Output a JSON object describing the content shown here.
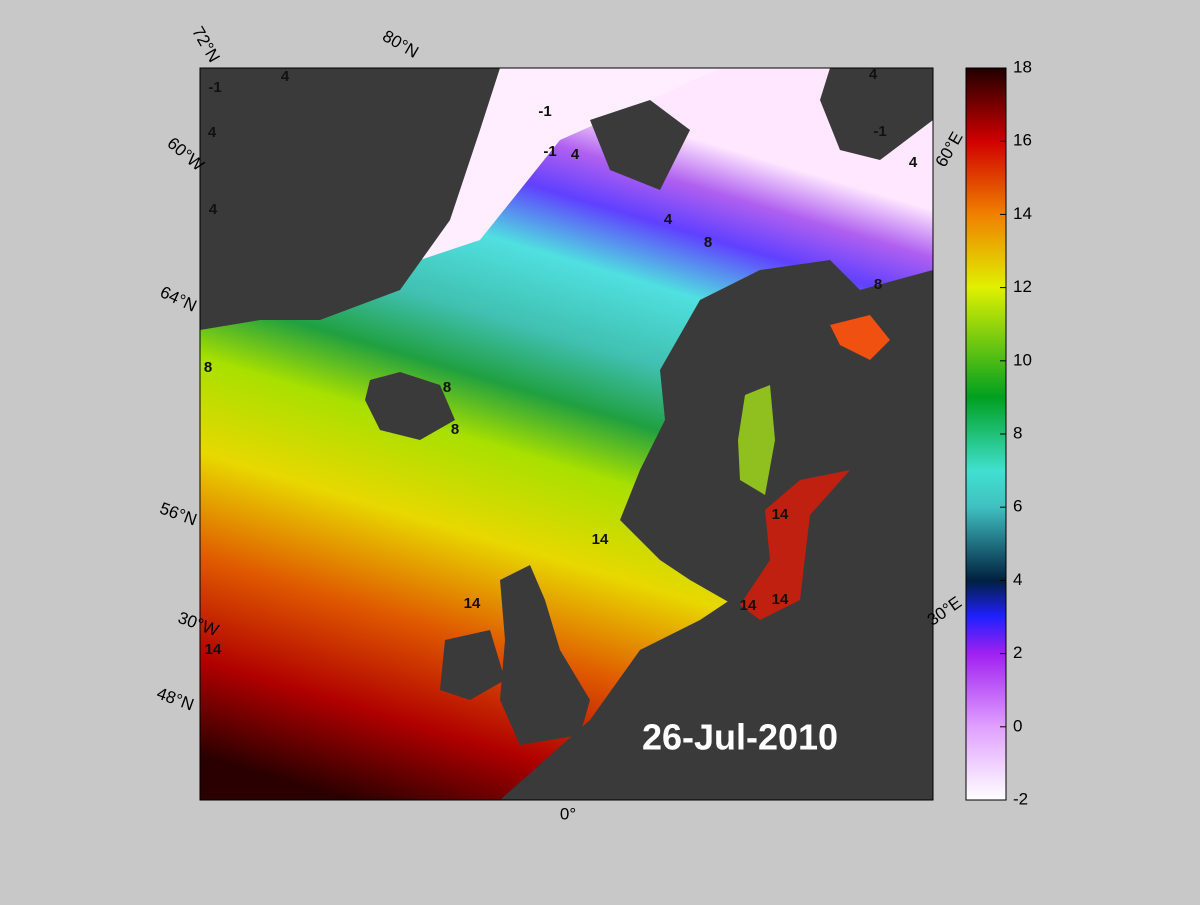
{
  "date": "26-Jul-2010",
  "graticule_labels": [
    "72°N",
    "80°N",
    "60°W",
    "64°N",
    "56°N",
    "30°W",
    "48°N",
    "0°",
    "60°E",
    "30°E"
  ],
  "contour_labels": [
    -1,
    -1,
    -1,
    -1,
    4,
    4,
    4,
    4,
    4,
    4,
    4,
    8,
    8,
    8,
    8,
    8,
    14,
    14,
    14,
    14,
    14,
    14
  ],
  "colorbar": {
    "range": [
      -2,
      18
    ],
    "ticks": [
      -2,
      0,
      2,
      4,
      6,
      8,
      10,
      12,
      14,
      16,
      18
    ]
  }
}
